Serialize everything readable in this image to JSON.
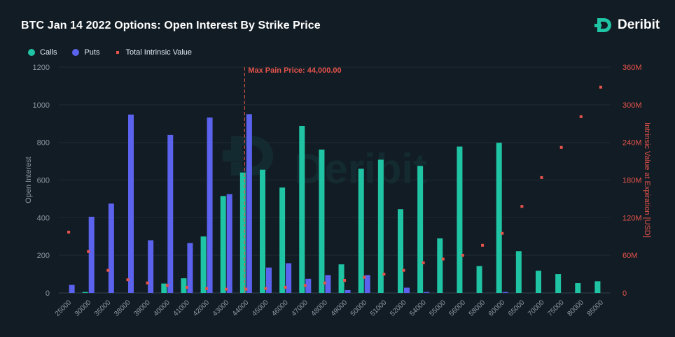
{
  "title": "BTC Jan 14 2022 Options: Open Interest By Strike Price",
  "brand": {
    "name": "Deribit",
    "watermark": "Deribit",
    "logo_icon": "deribit-logo-icon"
  },
  "legend": [
    {
      "label": "Calls",
      "color": "#1fc4a4",
      "shape": "circle"
    },
    {
      "label": "Puts",
      "color": "#5b62ee",
      "shape": "circle"
    },
    {
      "label": "Total Intrinsic Value",
      "color": "#e5534b",
      "shape": "square"
    }
  ],
  "annotation": {
    "label": "Max Pain Price: 44,000.00",
    "category": "44000",
    "color": "#e5534b"
  },
  "colors": {
    "calls": "#1fc4a4",
    "puts": "#5b62ee",
    "intrinsic": "#e5534b",
    "background": "#121c24",
    "grid": "#1e2a33",
    "axis_text": "#8b98a5"
  },
  "chart_data": {
    "type": "bar",
    "categories": [
      "25000",
      "30000",
      "35000",
      "38000",
      "39000",
      "40000",
      "41000",
      "42000",
      "43000",
      "44000",
      "45000",
      "46000",
      "47000",
      "48000",
      "49000",
      "50000",
      "51000",
      "52000",
      "54000",
      "55000",
      "56000",
      "58000",
      "60000",
      "65000",
      "70000",
      "75000",
      "80000",
      "85000"
    ],
    "series": [
      {
        "name": "Calls",
        "axis": "left",
        "type": "bar",
        "values": [
          0,
          5,
          0,
          0,
          0,
          50,
          78,
          300,
          515,
          640,
          655,
          560,
          888,
          762,
          152,
          660,
          708,
          445,
          675,
          290,
          778,
          143,
          798,
          222,
          118,
          100,
          52,
          62
        ]
      },
      {
        "name": "Puts",
        "axis": "left",
        "type": "bar",
        "values": [
          43,
          405,
          475,
          948,
          280,
          840,
          265,
          932,
          525,
          950,
          135,
          158,
          75,
          95,
          15,
          95,
          0,
          28,
          5,
          0,
          0,
          0,
          5,
          0,
          0,
          0,
          0,
          0
        ]
      },
      {
        "name": "Total Intrinsic Value",
        "axis": "right",
        "type": "scatter",
        "values": [
          97,
          66,
          36,
          21,
          16,
          12,
          9,
          7,
          6,
          6,
          7,
          9,
          12,
          16,
          20,
          25,
          30,
          36,
          48,
          54,
          60,
          76,
          95,
          138,
          184,
          232,
          281,
          328
        ]
      }
    ],
    "ylabel": "Open Interest",
    "ylim": [
      0,
      1200
    ],
    "yticks": [
      "0",
      "200",
      "400",
      "600",
      "800",
      "1000",
      "1200"
    ],
    "y2label": "Intrinsic Value at Expiration [USD]",
    "y2lim": [
      0,
      360
    ],
    "y2ticks": [
      "0",
      "60M",
      "120M",
      "180M",
      "240M",
      "300M",
      "360M"
    ],
    "grid": true,
    "legend_position": "top-left"
  }
}
